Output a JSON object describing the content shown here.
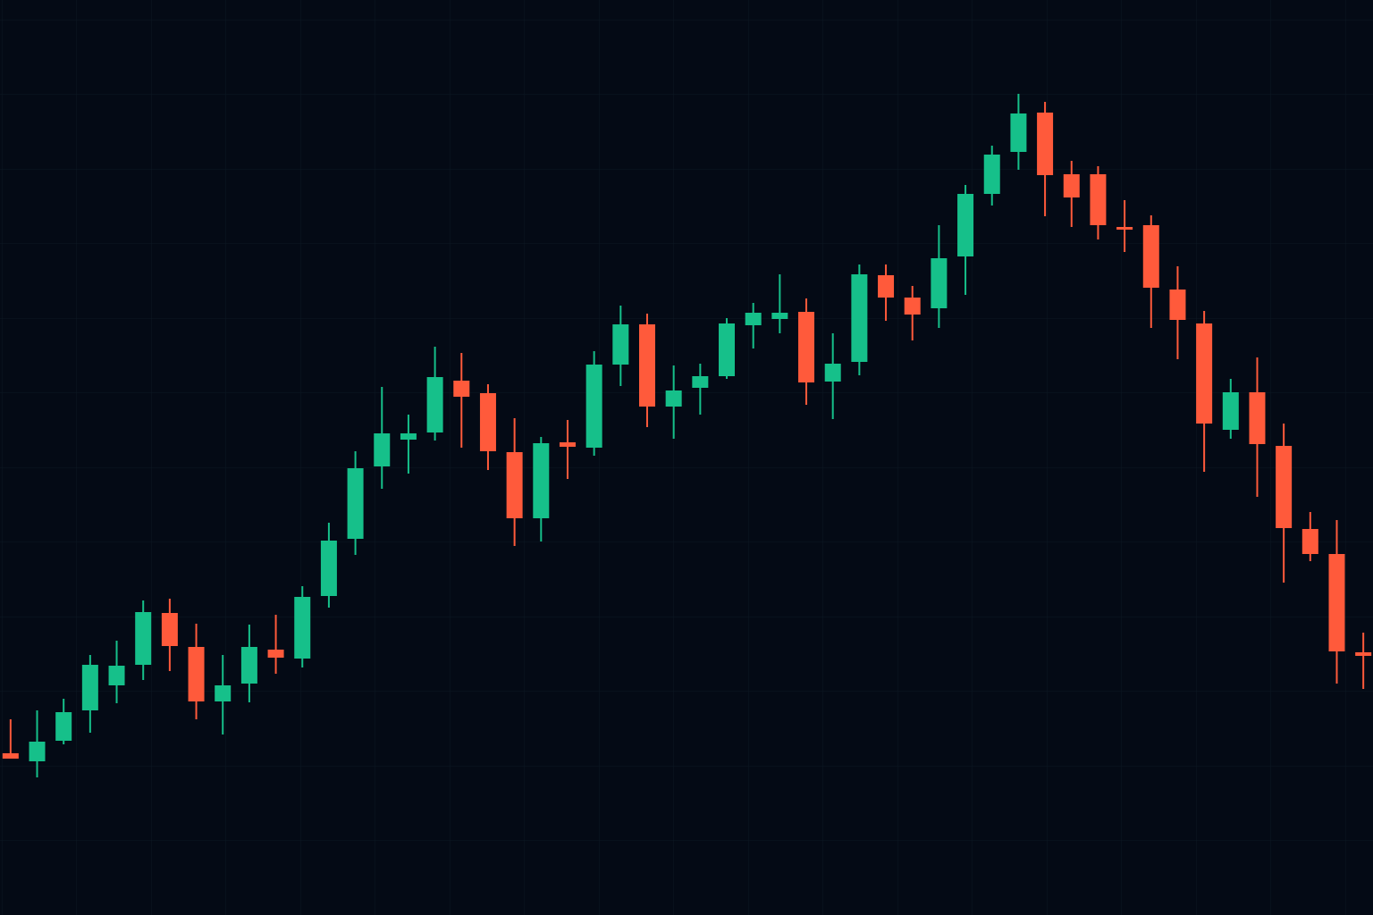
{
  "chart_data": {
    "type": "candlestick",
    "open": [
      181,
      172,
      195,
      229,
      257,
      280,
      338,
      300,
      239,
      259,
      297,
      287,
      357,
      421,
      502,
      532,
      540,
      598,
      584,
      518,
      444,
      529,
      523,
      616,
      661,
      569,
      590,
      603,
      660,
      667,
      675,
      597,
      619,
      716,
      691,
      679,
      737,
      807,
      854,
      898,
      829,
      829,
      770,
      772,
      700,
      662,
      543,
      585,
      525,
      432,
      404,
      294
    ],
    "high": [
      219,
      229,
      242,
      291,
      307,
      352,
      354,
      326,
      291,
      325,
      336,
      368,
      439,
      519,
      591,
      560,
      636,
      629,
      594,
      556,
      535,
      554,
      631,
      682,
      673,
      615,
      617,
      668,
      685,
      717,
      690,
      651,
      728,
      728,
      704,
      772,
      817,
      861,
      919,
      910,
      844,
      838,
      800,
      783,
      726,
      676,
      600,
      624,
      550,
      451,
      442,
      316
    ],
    "low": [
      175,
      154,
      191,
      204,
      237,
      263,
      273,
      219,
      202,
      238,
      270,
      277,
      344,
      403,
      477,
      494,
      531,
      523,
      498,
      413,
      418,
      488,
      514,
      592,
      546,
      533,
      560,
      600,
      634,
      651,
      571,
      555,
      604,
      665,
      643,
      657,
      694,
      794,
      834,
      782,
      770,
      756,
      742,
      657,
      622,
      496,
      533,
      468,
      372,
      396,
      259,
      253
    ],
    "close": [
      175,
      194,
      227,
      280,
      279,
      339,
      301,
      239,
      257,
      300,
      288,
      356,
      419,
      500,
      539,
      539,
      602,
      580,
      519,
      444,
      528,
      524,
      616,
      661,
      569,
      587,
      603,
      662,
      674,
      674,
      596,
      617,
      717,
      691,
      672,
      735,
      807,
      851,
      897,
      828,
      803,
      772,
      767,
      702,
      666,
      550,
      585,
      527,
      433,
      404,
      295,
      290
    ],
    "up_color": "#16c08a",
    "down_color": "#ff5a3b",
    "ylim": [
      0,
      1024
    ]
  }
}
